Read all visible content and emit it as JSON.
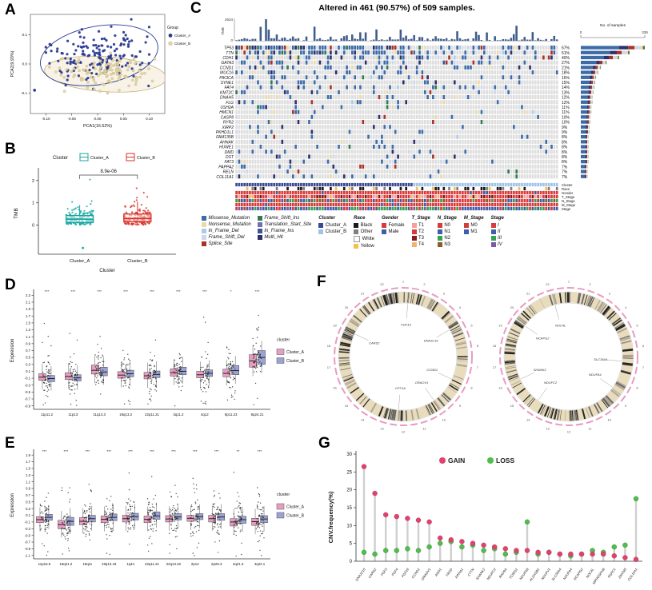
{
  "chart_data": [
    {
      "panel_label": "A",
      "type": "scatter",
      "xlabel": "PCA1(16.62%)",
      "ylabel": "PCA2(9.93%)",
      "x_ticks": [
        "-0.10",
        "-0.05",
        "0.00",
        "0.05",
        "0.10"
      ],
      "y_ticks": [
        "-0.1",
        "0.0",
        "0.1"
      ],
      "legend_title": "Group",
      "groups": [
        {
          "name": "Cluster_A",
          "color": "#2B3A8F",
          "n": 165,
          "cx": 0.0,
          "cy": 0.035,
          "sx": 0.05,
          "sy": 0.042,
          "ellipse": {
            "cx": 0.003,
            "cy": 0.03,
            "rx": 0.115,
            "ry": 0.1,
            "rot": -10
          }
        },
        {
          "name": "Cluster_B",
          "color": "#E4D4A4",
          "edge": "#B8A873",
          "n": 115,
          "cx": 0.018,
          "cy": -0.03,
          "sx": 0.045,
          "sy": 0.028,
          "ellipse": {
            "cx": 0.015,
            "cy": -0.035,
            "rx": 0.118,
            "ry": 0.06,
            "rot": 4
          }
        }
      ],
      "outlier": {
        "x": -0.122,
        "y": -0.09,
        "color": "#2B3A8F"
      }
    },
    {
      "panel_label": "B",
      "type": "boxplot-jitter",
      "legend_title": "Cluster",
      "pvalue": "8.9e-06",
      "ylabel": "TMB",
      "xlabel": "Cluster",
      "ylim": [
        -1.3,
        2.35
      ],
      "yticks": [
        0,
        1,
        2
      ],
      "outlier_y": -1.02,
      "groups": [
        {
          "name": "Cluster_A",
          "color": "#18A6A0",
          "n": 175,
          "box": [
            -0.02,
            0.12,
            0.27,
            0.43,
            0.9
          ]
        },
        {
          "name": "Cluster_B",
          "color": "#D93025",
          "n": 165,
          "box": [
            0.0,
            0.16,
            0.3,
            0.5,
            1.05
          ]
        }
      ]
    },
    {
      "panel_label": "C",
      "type": "oncoprint",
      "title": "Altered in 461 (90.57%) of 509 samples.",
      "tmb_axis_max": "2634",
      "tmb_label": "TMB",
      "samples_axis": {
        "title": "No. of samples",
        "min": "0",
        "max": "339"
      },
      "genes": [
        {
          "name": "TP53",
          "pct": 67
        },
        {
          "name": "TTN",
          "pct": 51
        },
        {
          "name": "CDH1",
          "pct": 40
        },
        {
          "name": "GATA3",
          "pct": 27
        },
        {
          "name": "CCND1",
          "pct": 21
        },
        {
          "name": "MUC16",
          "pct": 18
        },
        {
          "name": "PIK3CA",
          "pct": 16
        },
        {
          "name": "SYNE1",
          "pct": 15
        },
        {
          "name": "FAT4",
          "pct": 14
        },
        {
          "name": "KMT2C",
          "pct": 13
        },
        {
          "name": "DNAH5",
          "pct": 12
        },
        {
          "name": "FLG",
          "pct": 12
        },
        {
          "name": "USH2A",
          "pct": 11
        },
        {
          "name": "HMCN1",
          "pct": 11
        },
        {
          "name": "CASP8",
          "pct": 10
        },
        {
          "name": "RYR2",
          "pct": 10
        },
        {
          "name": "XIRP2",
          "pct": 9
        },
        {
          "name": "PKHD1L1",
          "pct": 9
        },
        {
          "name": "FAM135B",
          "pct": 8
        },
        {
          "name": "AHNAK",
          "pct": 8
        },
        {
          "name": "HUWE1",
          "pct": 8
        },
        {
          "name": "DMD",
          "pct": 8
        },
        {
          "name": "DST",
          "pct": 8
        },
        {
          "name": "FAT3",
          "pct": 8
        },
        {
          "name": "PAPPA2",
          "pct": 7
        },
        {
          "name": "RELN",
          "pct": 7
        },
        {
          "name": "COL11A1",
          "pct": 7
        }
      ],
      "mutation_types": [
        {
          "label": "Missense_Mutation",
          "color": "#3D6BA6"
        },
        {
          "label": "Nonsense_Mutation",
          "color": "#EDD9A3"
        },
        {
          "label": "In_Frame_Del",
          "color": "#A9CBE8"
        },
        {
          "label": "Frame_Shift_Del",
          "color": "#CDD7EC"
        },
        {
          "label": "Splice_Site",
          "color": "#A93226"
        },
        {
          "label": "Frame_Shift_Ins",
          "color": "#31794F"
        },
        {
          "label": "Translation_Start_Site",
          "color": "#716FB3"
        },
        {
          "label": "In_Frame_Ins",
          "color": "#3A5795"
        },
        {
          "label": "Multi_Hit",
          "color": "#2F2F6B"
        }
      ],
      "legend_groups": [
        {
          "title": "Cluster",
          "items": [
            {
              "label": "Cluster_A",
              "color": "#3B4992"
            },
            {
              "label": "Cluster_B",
              "color": "#9FC2E8"
            }
          ]
        },
        {
          "title": "Race",
          "items": [
            {
              "label": "Black",
              "color": "#1A1A1A"
            },
            {
              "label": "Other",
              "color": "#7F7F7F"
            },
            {
              "label": "White",
              "color": "#FDFDFD"
            },
            {
              "label": "Yellow",
              "color": "#F2C14E"
            }
          ]
        },
        {
          "title": "Gender",
          "items": [
            {
              "label": "Female",
              "color": "#D93A3A"
            },
            {
              "label": "Male",
              "color": "#3E5FA8"
            }
          ]
        },
        {
          "title": "T_Stage",
          "items": [
            {
              "label": "T1",
              "color": "#F2A0A0"
            },
            {
              "label": "T2",
              "color": "#D93A3A"
            },
            {
              "label": "T3",
              "color": "#8B1A1A"
            },
            {
              "label": "T4",
              "color": "#F5B26B"
            }
          ]
        },
        {
          "title": "N_Stage",
          "items": [
            {
              "label": "N0",
              "color": "#D93A3A"
            },
            {
              "label": "N1",
              "color": "#3E5FA8"
            },
            {
              "label": "N2",
              "color": "#37A055"
            },
            {
              "label": "N3",
              "color": "#8C5A2B"
            }
          ]
        },
        {
          "title": "M_Stage",
          "items": [
            {
              "label": "M0",
              "color": "#D93A3A"
            },
            {
              "label": "M1",
              "color": "#3E5FA8"
            }
          ]
        },
        {
          "title": "Stage",
          "italic": true,
          "items": [
            {
              "label": "I",
              "color": "#D93A3A"
            },
            {
              "label": "II",
              "color": "#3E5FA8"
            },
            {
              "label": "III",
              "color": "#37A055"
            },
            {
              "label": "IV",
              "color": "#7B5AA6"
            }
          ]
        }
      ],
      "annotation_tracks": [
        "Cluster",
        "Race",
        "Gender",
        "T_Stage",
        "N_Stage",
        "M_Stage",
        "Stage"
      ]
    },
    {
      "panel_label": "D",
      "type": "box-jitter-multi",
      "ylabel": "Expression",
      "ylim": [
        -1.0,
        2.4
      ],
      "yticks": [
        2.3,
        2.1,
        1.9,
        1.7,
        1.5,
        1.3,
        1.1,
        0.9,
        0.7,
        0.5,
        0.3,
        0.1,
        -0.1,
        -0.3,
        -0.5,
        -0.7,
        -0.9
      ],
      "legend_title": "cluster",
      "clusters": [
        {
          "name": "Cluster_A",
          "color": "#E79EC3"
        },
        {
          "name": "Cluster_B",
          "color": "#9CA3D4"
        }
      ],
      "categories": [
        "11p11.2",
        "11p13",
        "11q13.3",
        "19q13.2",
        "22q11.21",
        "3q11.2",
        "4q12",
        "8p11.23",
        "8q24.21"
      ],
      "sig": [
        "***",
        "***",
        "***",
        "***",
        "***",
        "***",
        "***",
        "*",
        "***"
      ],
      "boxes_a": [
        [
          -0.16,
          -0.07,
          0.03
        ],
        [
          -0.14,
          -0.05,
          0.06
        ],
        [
          0.02,
          0.13,
          0.28
        ],
        [
          -0.1,
          -0.01,
          0.09
        ],
        [
          -0.12,
          -0.03,
          0.07
        ],
        [
          -0.04,
          0.06,
          0.17
        ],
        [
          -0.09,
          0.0,
          0.1
        ],
        [
          -0.06,
          0.04,
          0.16
        ],
        [
          0.22,
          0.4,
          0.58
        ]
      ],
      "boxes_b": [
        [
          -0.2,
          -0.11,
          -0.02
        ],
        [
          -0.18,
          -0.09,
          0.0
        ],
        [
          -0.03,
          0.08,
          0.22
        ],
        [
          -0.06,
          0.03,
          0.13
        ],
        [
          -0.08,
          0.01,
          0.11
        ],
        [
          0.0,
          0.1,
          0.22
        ],
        [
          -0.05,
          0.04,
          0.14
        ],
        [
          0.0,
          0.12,
          0.27
        ],
        [
          0.3,
          0.5,
          0.7
        ]
      ]
    },
    {
      "panel_label": "E",
      "type": "box-jitter-multi",
      "ylabel": "Expression",
      "ylim": [
        -1.2,
        2.0
      ],
      "yticks": [
        1.9,
        1.7,
        1.5,
        1.3,
        1.1,
        0.9,
        0.7,
        0.5,
        0.3,
        0.1,
        -0.1,
        -0.3,
        -0.5,
        -0.7,
        -0.9,
        -1.1
      ],
      "legend_title": "cluster",
      "clusters": [
        {
          "name": "Cluster_A",
          "color": "#E79EC3"
        },
        {
          "name": "Cluster_B",
          "color": "#9CA3D4"
        }
      ],
      "categories": [
        "11p15.5",
        "18q21.2",
        "19q11",
        "19q13.43",
        "1q44",
        "22q11.21",
        "22q13.32",
        "2p12",
        "2p25.3",
        "4q21.3",
        "4q22.1"
      ],
      "sig": [
        "***",
        "***",
        "***",
        "***",
        "***",
        "***",
        "***",
        "***",
        "***",
        "**",
        "***"
      ],
      "boxes_a": [
        [
          -0.12,
          -0.03,
          0.06
        ],
        [
          -0.3,
          -0.18,
          -0.05
        ],
        [
          -0.18,
          -0.08,
          0.03
        ],
        [
          -0.12,
          -0.02,
          0.08
        ],
        [
          -0.1,
          0.0,
          0.1
        ],
        [
          -0.12,
          -0.02,
          0.08
        ],
        [
          -0.1,
          -0.01,
          0.09
        ],
        [
          -0.08,
          0.01,
          0.1
        ],
        [
          -0.1,
          0.0,
          0.1
        ],
        [
          -0.22,
          -0.1,
          0.0
        ],
        [
          -0.2,
          -0.09,
          0.01
        ]
      ],
      "boxes_b": [
        [
          -0.05,
          0.04,
          0.13
        ],
        [
          -0.2,
          -0.08,
          0.04
        ],
        [
          -0.1,
          0.0,
          0.1
        ],
        [
          -0.06,
          0.04,
          0.14
        ],
        [
          -0.04,
          0.06,
          0.16
        ],
        [
          -0.02,
          0.08,
          0.2
        ],
        [
          -0.04,
          0.05,
          0.15
        ],
        [
          -0.03,
          0.06,
          0.15
        ],
        [
          -0.05,
          0.05,
          0.15
        ],
        [
          -0.14,
          -0.03,
          0.07
        ],
        [
          -0.12,
          -0.01,
          0.09
        ]
      ]
    },
    {
      "panel_label": "F",
      "type": "circos",
      "chromosomes": [
        "1",
        "2",
        "3",
        "4",
        "5",
        "6",
        "7",
        "8",
        "9",
        "10",
        "11",
        "12",
        "13",
        "14",
        "15",
        "16",
        "17",
        "18",
        "19",
        "20",
        "21",
        "22"
      ],
      "plots": [
        {
          "genes": [
            {
              "label": "CPT1A",
              "angle": 95
            },
            {
              "label": "CCND1",
              "angle": 25
            },
            {
              "label": "ORAOV1",
              "angle": 55
            },
            {
              "label": "DNAJC15",
              "angle": 330
            },
            {
              "label": "CARS2",
              "angle": 205
            },
            {
              "label": "FGF19",
              "angle": 275
            }
          ]
        },
        {
          "genes": [
            {
              "label": "SLC35A4",
              "angle": 5
            },
            {
              "label": "NDUFA4",
              "angle": 35
            },
            {
              "label": "NDUFC2",
              "angle": 125
            },
            {
              "label": "SHANK2",
              "angle": 155
            },
            {
              "label": "NCAPG2",
              "angle": 215
            },
            {
              "label": "NOC4L",
              "angle": 255
            }
          ]
        }
      ]
    },
    {
      "panel_label": "G",
      "type": "lollipop",
      "ylabel": "CNV.frequency(%)",
      "yticks": [
        0,
        5,
        10,
        15,
        20,
        25,
        30
      ],
      "legend": [
        {
          "label": "GAIN",
          "color": "#E0426E"
        },
        {
          "label": "LOSS",
          "color": "#4FBE4A"
        }
      ],
      "genes": [
        "DNAJC15",
        "CARS2",
        "FGF3",
        "FGF4",
        "FGF19",
        "CCND1",
        "ORAOV1",
        "ANO1",
        "FADD",
        "PPFIA1",
        "CTTN",
        "SHANK2",
        "NDUFC2",
        "RAD9A",
        "TCIRG1",
        "NDUFS8",
        "ALDH3B1",
        "NDUFV1",
        "SLC35A4",
        "NDUFA4",
        "NCAPG2",
        "NOC4L",
        "MPHOSPH8",
        "PSPC1",
        "ZMYM5",
        "COL11A1"
      ],
      "gain": [
        26.5,
        19.0,
        13.0,
        12.5,
        12.0,
        11.5,
        11.0,
        6.5,
        6.0,
        5.5,
        5.0,
        4.5,
        4.0,
        3.5,
        3.0,
        3.0,
        2.5,
        2.5,
        2.0,
        2.0,
        2.0,
        2.0,
        2.0,
        1.5,
        1.0,
        0.5
      ],
      "loss": [
        2.5,
        2.0,
        3.0,
        3.0,
        3.5,
        3.0,
        4.0,
        5.0,
        5.5,
        4.0,
        4.5,
        3.0,
        3.5,
        2.0,
        2.5,
        11.0,
        2.0,
        2.5,
        2.0,
        1.5,
        2.0,
        3.0,
        2.5,
        4.0,
        4.5,
        17.5
      ]
    }
  ]
}
